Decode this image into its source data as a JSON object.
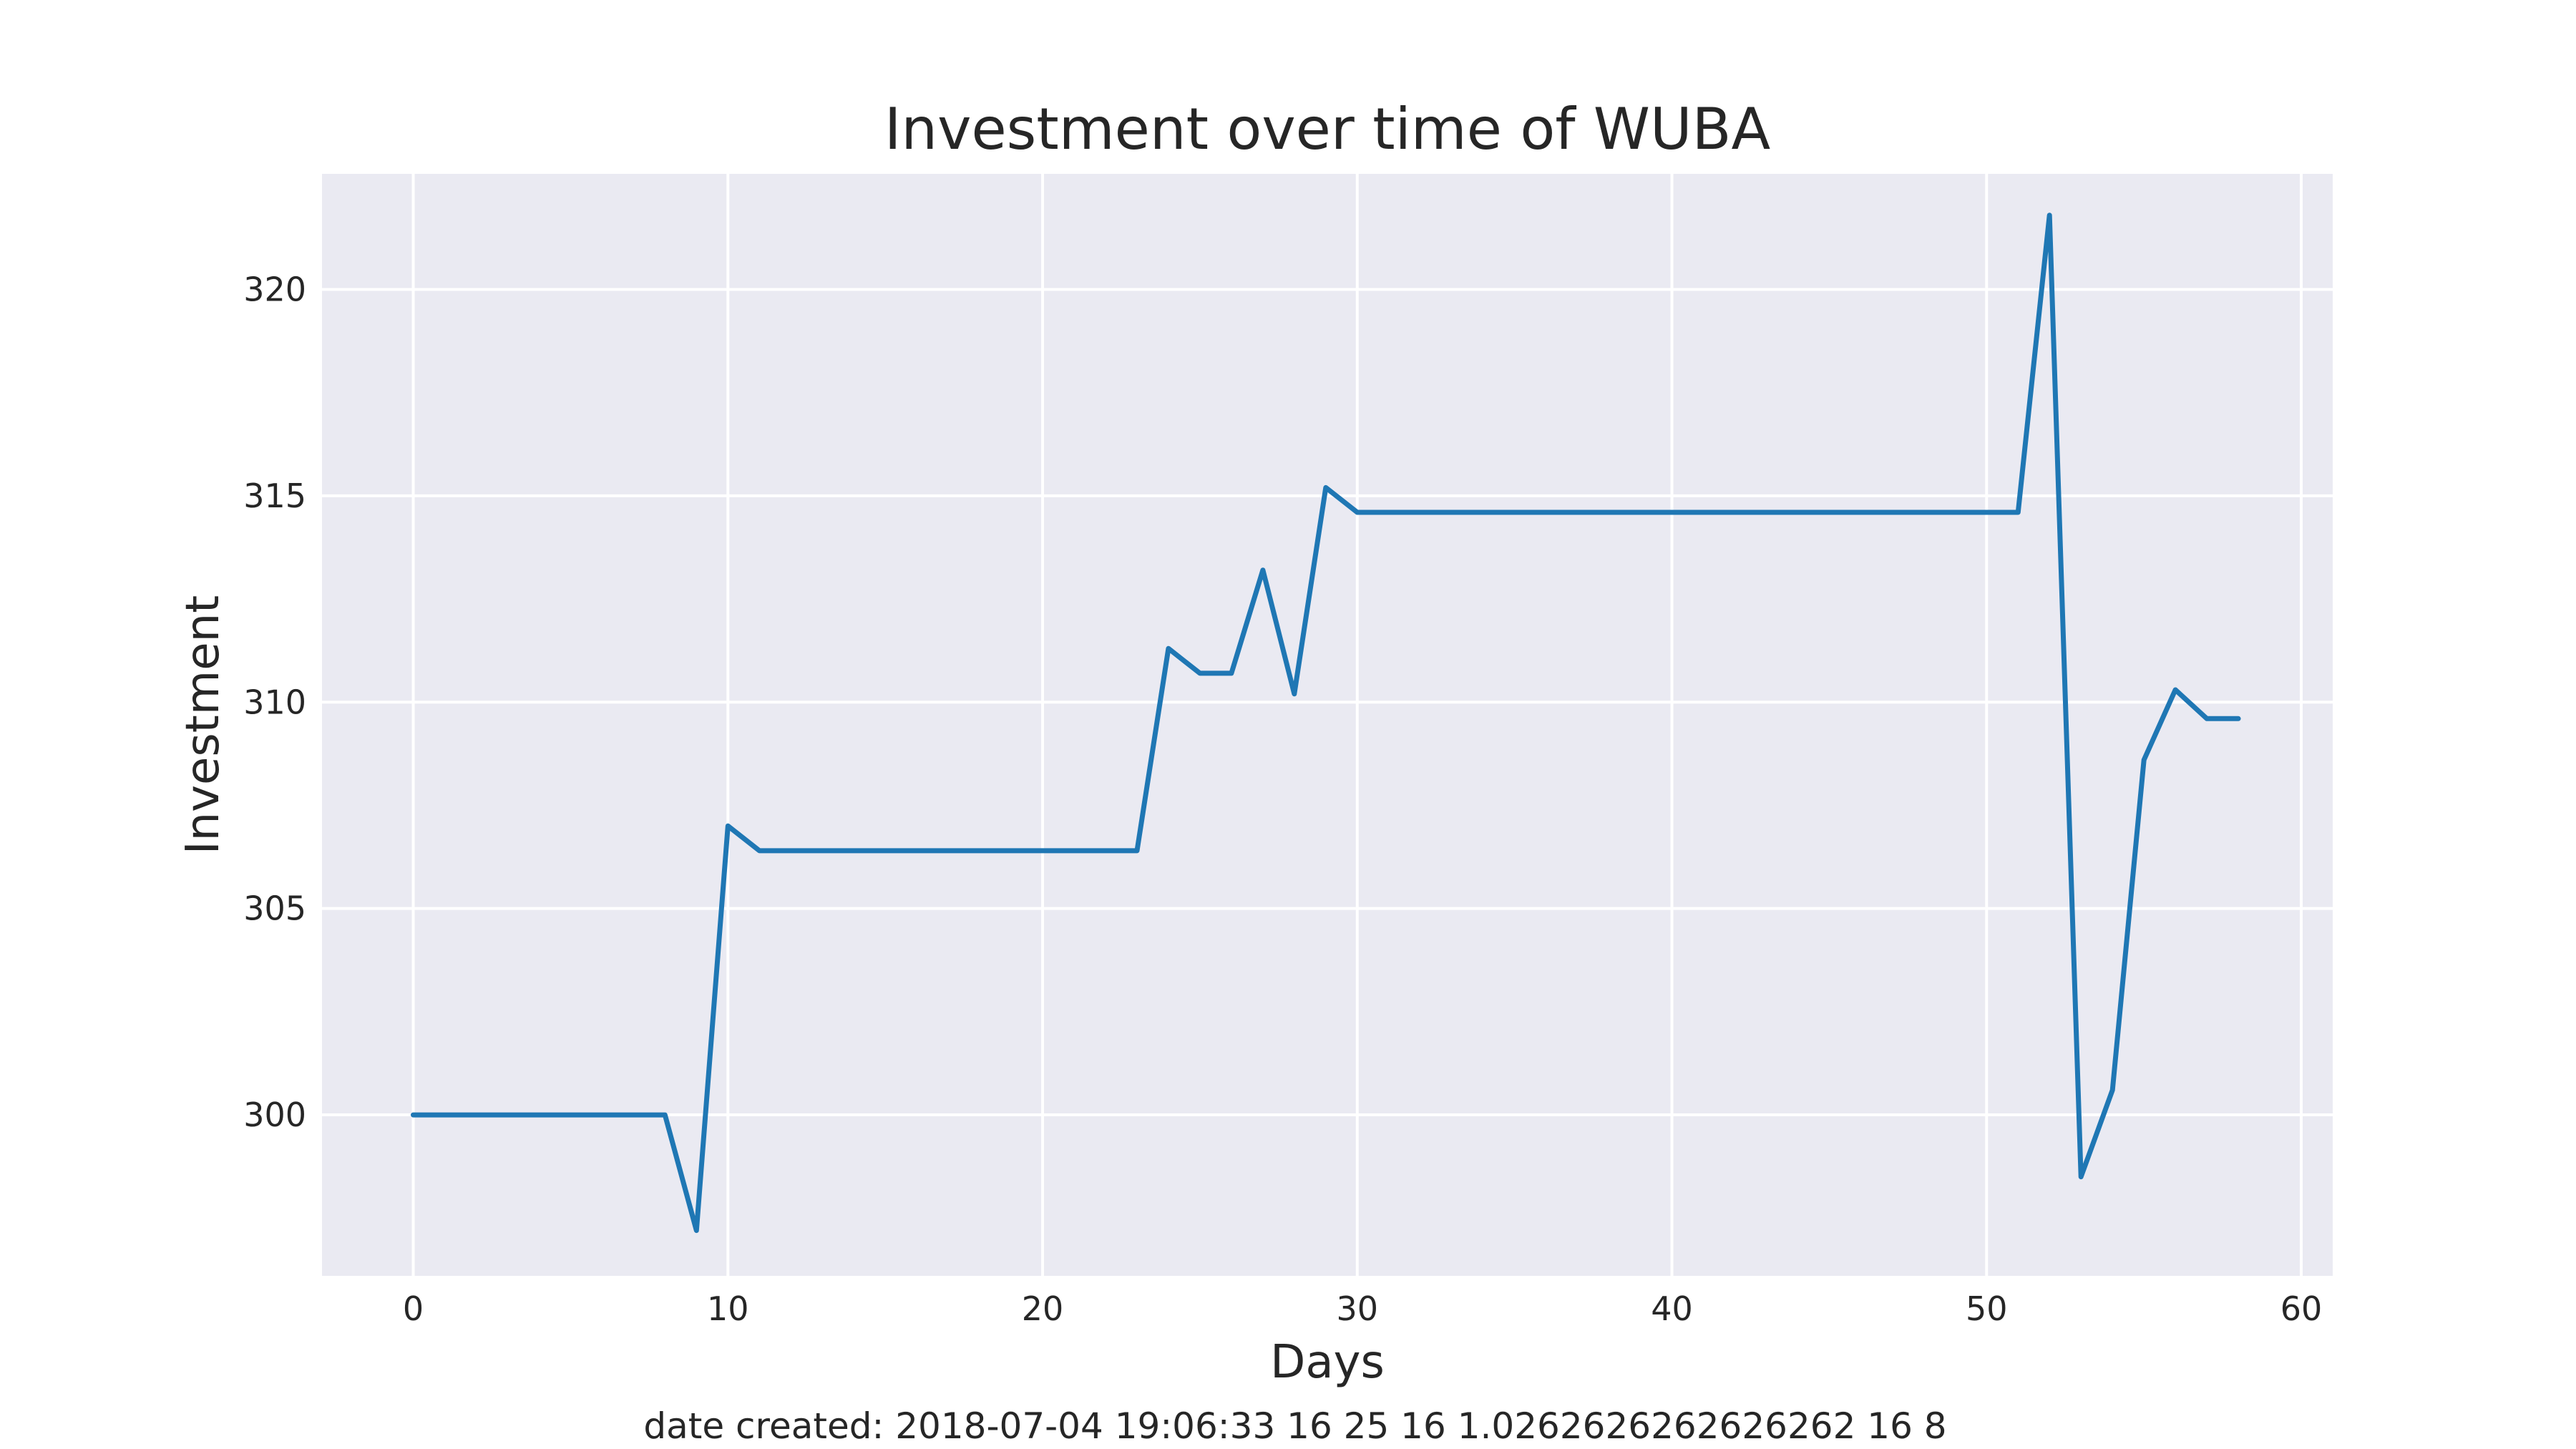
{
  "chart_data": {
    "type": "line",
    "title": "Investment over time of WUBA",
    "xlabel": "Days",
    "ylabel": "Investment",
    "caption": "date created: 2018-07-04 19:06:33 16 25 16 1.0262626262626262 16 8",
    "xlim": [
      -2.9,
      61.0
    ],
    "ylim": [
      296.1,
      322.8
    ],
    "xticks": [
      0,
      10,
      20,
      30,
      40,
      50,
      60
    ],
    "yticks": [
      300,
      305,
      310,
      315,
      320
    ],
    "grid": true,
    "colors": {
      "background": "#EAEAF2",
      "grid": "#FFFFFF",
      "line": "#1F77B4",
      "text": "#262626"
    },
    "series": [
      {
        "x": [
          0,
          1,
          2,
          3,
          4,
          5,
          6,
          7,
          8,
          9,
          10,
          11,
          12,
          13,
          14,
          15,
          16,
          17,
          18,
          19,
          20,
          21,
          22,
          23,
          24,
          25,
          26,
          27,
          28,
          29,
          30,
          31,
          32,
          33,
          34,
          35,
          36,
          37,
          38,
          39,
          40,
          41,
          42,
          43,
          44,
          45,
          46,
          47,
          48,
          49,
          50,
          51,
          52,
          53,
          54,
          55,
          56,
          57,
          58
        ],
        "values": [
          300.0,
          300.0,
          300.0,
          300.0,
          300.0,
          300.0,
          300.0,
          300.0,
          300.0,
          297.2,
          307.0,
          306.4,
          306.4,
          306.4,
          306.4,
          306.4,
          306.4,
          306.4,
          306.4,
          306.4,
          306.4,
          306.4,
          306.4,
          306.4,
          311.3,
          310.7,
          310.7,
          313.2,
          310.2,
          315.2,
          314.6,
          314.6,
          314.6,
          314.6,
          314.6,
          314.6,
          314.6,
          314.6,
          314.6,
          314.6,
          314.6,
          314.6,
          314.6,
          314.6,
          314.6,
          314.6,
          314.6,
          314.6,
          314.6,
          314.6,
          314.6,
          314.6,
          321.8,
          298.5,
          300.6,
          308.6,
          310.3,
          309.6,
          309.6
        ]
      }
    ]
  }
}
